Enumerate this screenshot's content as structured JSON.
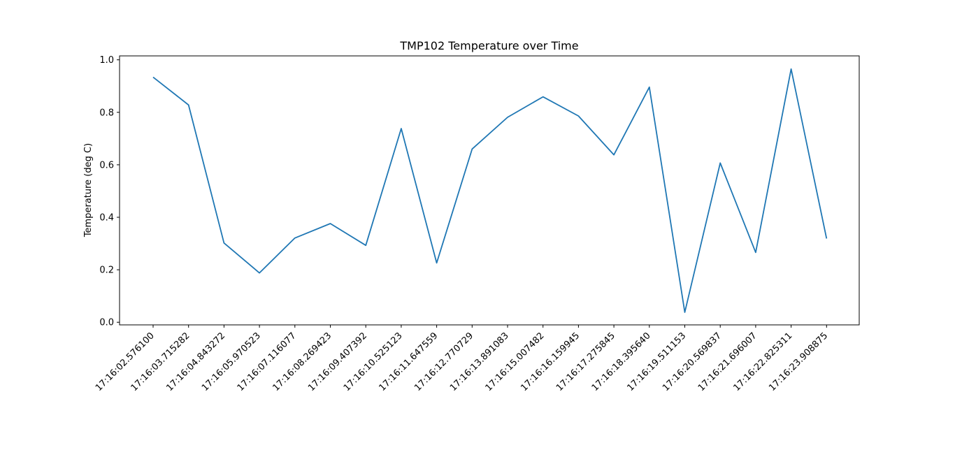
{
  "chart_data": {
    "type": "line",
    "title": "TMP102 Temperature over Time",
    "xlabel": "",
    "ylabel": "Temperature (deg C)",
    "ylim": [
      -0.01,
      1.015
    ],
    "grid": false,
    "legend": "none",
    "yticks": [
      "0.0",
      "0.2",
      "0.4",
      "0.6",
      "0.8",
      "1.0"
    ],
    "x": [
      "17:16:02.576100",
      "17:16:03.715282",
      "17:16:04.843272",
      "17:16:05.970523",
      "17:16:07.116077",
      "17:16:08.269423",
      "17:16:09.407392",
      "17:16:10.525123",
      "17:16:11.647559",
      "17:16:12.770729",
      "17:16:13.891083",
      "17:16:15.007482",
      "17:16:16.159945",
      "17:16:17.275845",
      "17:16:18.395640",
      "17:16:19.511153",
      "17:16:20.569837",
      "17:16:21.696007",
      "17:16:22.825311",
      "17:16:23.908875"
    ],
    "series": [
      {
        "color": "#1f77b4",
        "values": [
          0.934,
          0.828,
          0.302,
          0.188,
          0.321,
          0.376,
          0.293,
          0.738,
          0.226,
          0.66,
          0.781,
          0.859,
          0.786,
          0.638,
          0.896,
          0.038,
          0.607,
          0.266,
          0.965,
          0.319
        ]
      }
    ]
  }
}
